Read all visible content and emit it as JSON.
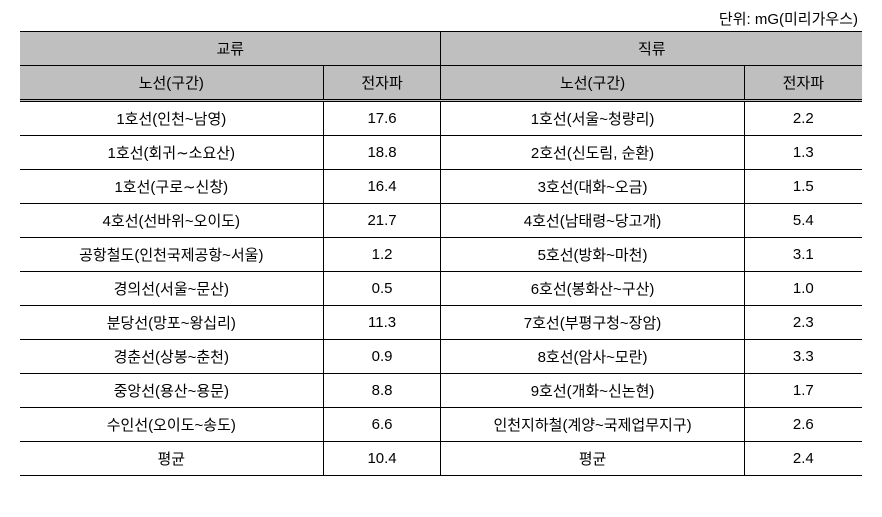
{
  "unit_label": "단위: mG(미리가우스)",
  "table": {
    "type": "table",
    "background_color": "#ffffff",
    "header_bg": "#bfbfbf",
    "border_color": "#000000",
    "fontsize": 15,
    "columns": {
      "ac_group": "교류",
      "dc_group": "직류",
      "route_header": "노선(구간)",
      "emf_header": "전자파"
    },
    "rows": [
      {
        "ac_route": "1호선(인천~남영)",
        "ac_value": "17.6",
        "dc_route": "1호선(서울~청량리)",
        "dc_value": "2.2"
      },
      {
        "ac_route": "1호선(회귀∼소요산)",
        "ac_value": "18.8",
        "dc_route": "2호선(신도림, 순환)",
        "dc_value": "1.3"
      },
      {
        "ac_route": "1호선(구로∼신창)",
        "ac_value": "16.4",
        "dc_route": "3호선(대화~오금)",
        "dc_value": "1.5"
      },
      {
        "ac_route": "4호선(선바위~오이도)",
        "ac_value": "21.7",
        "dc_route": "4호선(남태령~당고개)",
        "dc_value": "5.4"
      },
      {
        "ac_route": "공항철도(인천국제공항~서울)",
        "ac_value": "1.2",
        "dc_route": "5호선(방화~마천)",
        "dc_value": "3.1"
      },
      {
        "ac_route": "경의선(서울~문산)",
        "ac_value": "0.5",
        "dc_route": "6호선(봉화산~구산)",
        "dc_value": "1.0"
      },
      {
        "ac_route": "분당선(망포~왕십리)",
        "ac_value": "11.3",
        "dc_route": "7호선(부평구청~장암)",
        "dc_value": "2.3"
      },
      {
        "ac_route": "경춘선(상봉~춘천)",
        "ac_value": "0.9",
        "dc_route": "8호선(암사~모란)",
        "dc_value": "3.3"
      },
      {
        "ac_route": "중앙선(용산~용문)",
        "ac_value": "8.8",
        "dc_route": "9호선(개화~신논현)",
        "dc_value": "1.7"
      },
      {
        "ac_route": "수인선(오이도~송도)",
        "ac_value": "6.6",
        "dc_route": "인천지하철(계양~국제업무지구)",
        "dc_value": "2.6"
      },
      {
        "ac_route": "평균",
        "ac_value": "10.4",
        "dc_route": "평균",
        "dc_value": "2.4"
      }
    ]
  }
}
